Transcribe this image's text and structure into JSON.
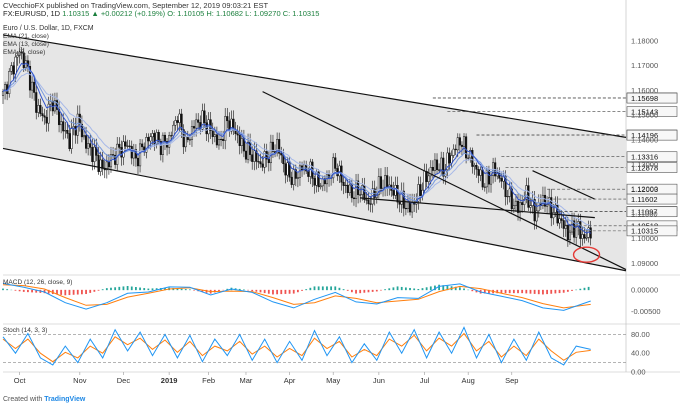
{
  "header": {
    "line1": "CVecchioFX published on TradingView.com, September 12, 2019 09:03:21 EST",
    "symbol": "FX:EURUSD, 1D",
    "ohlc": "1.10315 ▲ +0.00212 (+0.19%) O: 1.10105 H: 1.10682 L: 1.09270 C: 1.10315"
  },
  "footer": {
    "created_with": "Created with",
    "brand": "TradingView"
  },
  "colors": {
    "channel_fill": "#e6e6e6",
    "candle": "#111111",
    "ema_fast": "#3355cc",
    "ema_mid": "#7799dd",
    "ema_slow": "#a6b8e8",
    "macd_line": "#2196f3",
    "macd_signal": "#ff7f0e",
    "hist_up": "#26a69a",
    "hist_down": "#ef5350",
    "stoch_k": "#2196f3",
    "stoch_d": "#ff7f0e",
    "circle": "#e53935",
    "marker_bg": "#f7f7f7"
  },
  "chart_data": [
    {
      "type": "candlestick",
      "title": "Euro / U.S. Dollar, 1D, FXCM",
      "x_labels": [
        "Oct",
        "Nov",
        "Dec",
        "2019",
        "Feb",
        "Mar",
        "Apr",
        "May",
        "Jun",
        "Jul",
        "Aug",
        "Sep"
      ],
      "ylim": [
        1.0865,
        1.1885
      ],
      "y_ticks": [
        1.09,
        1.1,
        1.11,
        1.12,
        1.13,
        1.14,
        1.15,
        1.16,
        1.17,
        1.18
      ],
      "y_tick_labels": [
        "1.09000",
        "1.10000",
        "1.11000",
        "1.12000",
        "1.13000",
        "1.14000",
        "1.15000",
        "1.16000",
        "1.17000",
        "1.18000"
      ],
      "legend": [
        "EMA (21, close)",
        "EMA (13, close)",
        "EMA (8, close)"
      ],
      "close_path": [
        [
          0,
          1.158
        ],
        [
          4,
          1.168
        ],
        [
          8,
          1.176
        ],
        [
          12,
          1.168
        ],
        [
          16,
          1.154
        ],
        [
          20,
          1.148
        ],
        [
          24,
          1.156
        ],
        [
          28,
          1.146
        ],
        [
          32,
          1.14
        ],
        [
          36,
          1.148
        ],
        [
          40,
          1.138
        ],
        [
          44,
          1.134
        ],
        [
          48,
          1.128
        ],
        [
          52,
          1.132
        ],
        [
          56,
          1.136
        ],
        [
          60,
          1.138
        ],
        [
          64,
          1.132
        ],
        [
          68,
          1.138
        ],
        [
          72,
          1.142
        ],
        [
          76,
          1.138
        ],
        [
          80,
          1.14
        ],
        [
          84,
          1.15
        ],
        [
          88,
          1.138
        ],
        [
          92,
          1.146
        ],
        [
          96,
          1.148
        ],
        [
          100,
          1.144
        ],
        [
          104,
          1.138
        ],
        [
          108,
          1.148
        ],
        [
          112,
          1.143
        ],
        [
          116,
          1.136
        ],
        [
          120,
          1.134
        ],
        [
          124,
          1.13
        ],
        [
          128,
          1.134
        ],
        [
          132,
          1.138
        ],
        [
          136,
          1.128
        ],
        [
          140,
          1.124
        ],
        [
          144,
          1.129
        ],
        [
          148,
          1.127
        ],
        [
          152,
          1.122
        ],
        [
          156,
          1.124
        ],
        [
          160,
          1.13
        ],
        [
          164,
          1.122
        ],
        [
          168,
          1.118
        ],
        [
          172,
          1.12
        ],
        [
          176,
          1.114
        ],
        [
          180,
          1.12
        ],
        [
          184,
          1.123
        ],
        [
          188,
          1.119
        ],
        [
          192,
          1.115
        ],
        [
          196,
          1.112
        ],
        [
          200,
          1.118
        ],
        [
          204,
          1.125
        ],
        [
          208,
          1.13
        ],
        [
          212,
          1.128
        ],
        [
          216,
          1.134
        ],
        [
          220,
          1.14
        ],
        [
          224,
          1.134
        ],
        [
          228,
          1.128
        ],
        [
          232,
          1.122
        ],
        [
          236,
          1.128
        ],
        [
          240,
          1.124
        ],
        [
          244,
          1.116
        ],
        [
          248,
          1.112
        ],
        [
          252,
          1.118
        ],
        [
          256,
          1.11
        ],
        [
          260,
          1.116
        ],
        [
          264,
          1.112
        ],
        [
          268,
          1.108
        ],
        [
          272,
          1.102
        ],
        [
          276,
          1.105
        ],
        [
          280,
          1.1
        ],
        [
          283,
          1.1032
        ]
      ],
      "reference_levels": [
        {
          "value": 1.15698,
          "label": "1.15698",
          "x_from": 207
        },
        {
          "value": 1.1569,
          "label": "1.15698",
          "x_from": 207
        },
        {
          "value": 1.15143,
          "label": "1.15143",
          "x_from": 214
        },
        {
          "value": 1.14196,
          "label": "1.14196",
          "x_from": 228
        },
        {
          "value": 1.1419,
          "label": "1.14196",
          "x_from": 228
        },
        {
          "value": 1.13316,
          "label": "1.13316",
          "x_from": 240
        },
        {
          "value": 1.12878,
          "label": "1.12878",
          "x_from": 242
        },
        {
          "value": 1.12003,
          "label": "1.12003",
          "x_from": 262
        },
        {
          "value": 1.11602,
          "label": "1.11602",
          "x_from": 265
        },
        {
          "value": 1.11097,
          "label": "1.11097",
          "x_from": 268
        },
        {
          "value": 1.1109,
          "label": "1.11097",
          "x_from": 268
        },
        {
          "value": 1.10518,
          "label": "1.10518",
          "x_from": 270
        },
        {
          "value": 1.10315,
          "label": "1.10315",
          "x_from": 272
        }
      ],
      "trendlines": [
        {
          "from": [
            0,
            1.1825
          ],
          "to": [
            300,
            1.141
          ]
        },
        {
          "from": [
            0,
            1.1365
          ],
          "to": [
            300,
            1.087
          ]
        },
        {
          "from": [
            125,
            1.1595
          ],
          "to": [
            300,
            1.0875
          ]
        },
        {
          "from": [
            172,
            1.1165
          ],
          "to": [
            285,
            1.1085
          ]
        },
        {
          "from": [
            255,
            1.1275
          ],
          "to": [
            285,
            1.116
          ]
        }
      ]
    },
    {
      "type": "line",
      "title": "MACD (12, 26, close, 9)",
      "ylim": [
        -0.0075,
        0.003
      ],
      "y_ticks": [
        0.0,
        -0.005
      ],
      "y_tick_labels": [
        "0.00000",
        "-0.00500"
      ],
      "macd": [
        [
          0,
          0.0015
        ],
        [
          10,
          0.0006
        ],
        [
          20,
          -0.0005
        ],
        [
          30,
          -0.003
        ],
        [
          40,
          -0.0045
        ],
        [
          50,
          -0.003
        ],
        [
          60,
          -0.0008
        ],
        [
          70,
          -0.0005
        ],
        [
          80,
          0.0007
        ],
        [
          90,
          0.0006
        ],
        [
          100,
          -0.0012
        ],
        [
          110,
          0.0002
        ],
        [
          120,
          -0.0006
        ],
        [
          130,
          -0.0028
        ],
        [
          140,
          -0.0042
        ],
        [
          150,
          -0.0022
        ],
        [
          160,
          -0.0006
        ],
        [
          170,
          -0.0028
        ],
        [
          180,
          -0.0033
        ],
        [
          190,
          -0.0018
        ],
        [
          200,
          -0.002
        ],
        [
          210,
          0.0008
        ],
        [
          220,
          0.0014
        ],
        [
          230,
          -0.0005
        ],
        [
          240,
          -0.0015
        ],
        [
          250,
          -0.0025
        ],
        [
          260,
          -0.0042
        ],
        [
          270,
          -0.0048
        ],
        [
          283,
          -0.0026
        ]
      ],
      "signal": [
        [
          0,
          0.0012
        ],
        [
          10,
          0.001
        ],
        [
          20,
          0.0002
        ],
        [
          30,
          -0.0018
        ],
        [
          40,
          -0.0036
        ],
        [
          50,
          -0.0034
        ],
        [
          60,
          -0.0017
        ],
        [
          70,
          -0.0008
        ],
        [
          80,
          0.0002
        ],
        [
          90,
          0.0005
        ],
        [
          100,
          -0.0004
        ],
        [
          110,
          -0.0003
        ],
        [
          120,
          -0.0004
        ],
        [
          130,
          -0.0018
        ],
        [
          140,
          -0.0034
        ],
        [
          150,
          -0.003
        ],
        [
          160,
          -0.0014
        ],
        [
          170,
          -0.002
        ],
        [
          180,
          -0.003
        ],
        [
          190,
          -0.0026
        ],
        [
          200,
          -0.0022
        ],
        [
          210,
          -0.0004
        ],
        [
          220,
          0.0008
        ],
        [
          230,
          0.0003
        ],
        [
          240,
          -0.0008
        ],
        [
          250,
          -0.0018
        ],
        [
          260,
          -0.0032
        ],
        [
          270,
          -0.0042
        ],
        [
          283,
          -0.0034
        ]
      ]
    },
    {
      "type": "line",
      "title": "Stoch (14, 3, 3)",
      "ylim": [
        0,
        100
      ],
      "y_ticks": [
        80,
        40,
        0
      ],
      "y_tick_labels": [
        "80.00",
        "40.00",
        "0.00"
      ],
      "reference_lines": [
        80,
        20
      ],
      "k": [
        [
          0,
          75
        ],
        [
          6,
          40
        ],
        [
          12,
          82
        ],
        [
          18,
          30
        ],
        [
          24,
          15
        ],
        [
          30,
          55
        ],
        [
          36,
          20
        ],
        [
          42,
          70
        ],
        [
          48,
          30
        ],
        [
          54,
          90
        ],
        [
          60,
          45
        ],
        [
          66,
          85
        ],
        [
          72,
          35
        ],
        [
          78,
          80
        ],
        [
          84,
          30
        ],
        [
          90,
          78
        ],
        [
          96,
          22
        ],
        [
          102,
          70
        ],
        [
          108,
          35
        ],
        [
          114,
          80
        ],
        [
          120,
          25
        ],
        [
          126,
          70
        ],
        [
          132,
          20
        ],
        [
          138,
          65
        ],
        [
          144,
          25
        ],
        [
          150,
          88
        ],
        [
          156,
          35
        ],
        [
          162,
          75
        ],
        [
          168,
          20
        ],
        [
          174,
          60
        ],
        [
          180,
          25
        ],
        [
          186,
          85
        ],
        [
          192,
          40
        ],
        [
          198,
          90
        ],
        [
          204,
          30
        ],
        [
          210,
          85
        ],
        [
          216,
          40
        ],
        [
          222,
          95
        ],
        [
          228,
          30
        ],
        [
          234,
          80
        ],
        [
          240,
          20
        ],
        [
          246,
          70
        ],
        [
          252,
          25
        ],
        [
          258,
          85
        ],
        [
          264,
          30
        ],
        [
          270,
          15
        ],
        [
          276,
          55
        ],
        [
          283,
          48
        ]
      ],
      "d": [
        [
          0,
          70
        ],
        [
          6,
          50
        ],
        [
          12,
          70
        ],
        [
          18,
          40
        ],
        [
          24,
          22
        ],
        [
          30,
          42
        ],
        [
          36,
          30
        ],
        [
          42,
          55
        ],
        [
          48,
          40
        ],
        [
          54,
          75
        ],
        [
          60,
          58
        ],
        [
          66,
          72
        ],
        [
          72,
          48
        ],
        [
          78,
          68
        ],
        [
          84,
          42
        ],
        [
          90,
          65
        ],
        [
          96,
          35
        ],
        [
          102,
          55
        ],
        [
          108,
          45
        ],
        [
          114,
          65
        ],
        [
          120,
          38
        ],
        [
          126,
          55
        ],
        [
          132,
          32
        ],
        [
          138,
          50
        ],
        [
          144,
          35
        ],
        [
          150,
          72
        ],
        [
          156,
          50
        ],
        [
          162,
          65
        ],
        [
          168,
          32
        ],
        [
          174,
          48
        ],
        [
          180,
          35
        ],
        [
          186,
          70
        ],
        [
          192,
          55
        ],
        [
          198,
          78
        ],
        [
          204,
          45
        ],
        [
          210,
          72
        ],
        [
          216,
          55
        ],
        [
          222,
          82
        ],
        [
          228,
          45
        ],
        [
          234,
          65
        ],
        [
          240,
          32
        ],
        [
          246,
          55
        ],
        [
          252,
          35
        ],
        [
          258,
          70
        ],
        [
          264,
          45
        ],
        [
          270,
          25
        ],
        [
          276,
          42
        ],
        [
          283,
          46
        ]
      ]
    }
  ]
}
